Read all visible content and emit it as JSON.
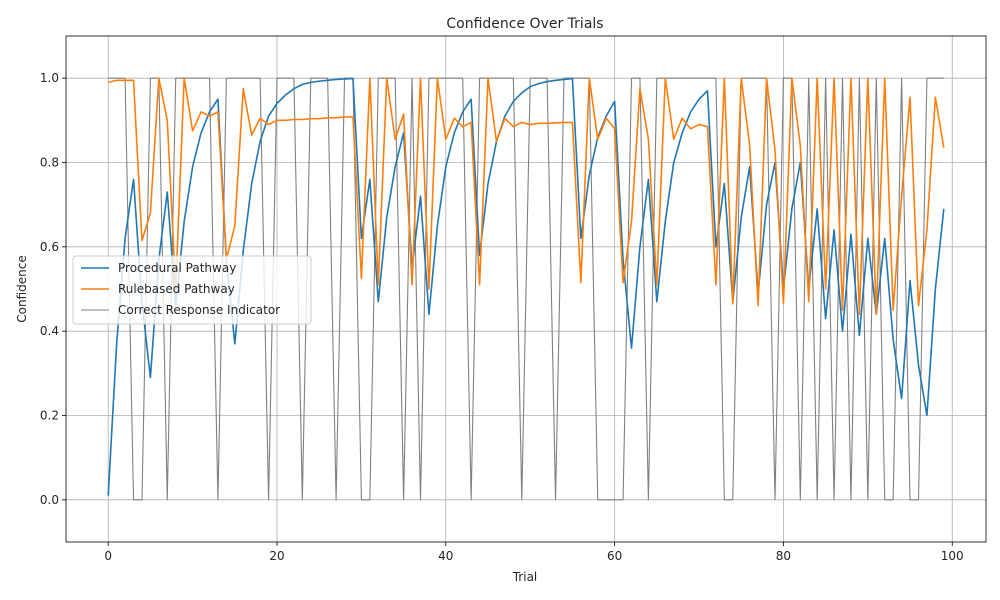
{
  "chart_data": {
    "type": "line",
    "title": "Confidence Over Trials",
    "xlabel": "Trial",
    "ylabel": "Confidence",
    "xlim": [
      -5,
      104
    ],
    "ylim": [
      -0.1,
      1.1
    ],
    "xticks": [
      0,
      20,
      40,
      60,
      80,
      100
    ],
    "yticks": [
      0.0,
      0.2,
      0.4,
      0.6,
      0.8,
      1.0
    ],
    "grid": true,
    "legend_position": "center-left",
    "x": [
      0,
      1,
      2,
      3,
      4,
      5,
      6,
      7,
      8,
      9,
      10,
      11,
      12,
      13,
      14,
      15,
      16,
      17,
      18,
      19,
      20,
      21,
      22,
      23,
      24,
      25,
      26,
      27,
      28,
      29,
      30,
      31,
      32,
      33,
      34,
      35,
      36,
      37,
      38,
      39,
      40,
      41,
      42,
      43,
      44,
      45,
      46,
      47,
      48,
      49,
      50,
      51,
      52,
      53,
      54,
      55,
      56,
      57,
      58,
      59,
      60,
      61,
      62,
      63,
      64,
      65,
      66,
      67,
      68,
      69,
      70,
      71,
      72,
      73,
      74,
      75,
      76,
      77,
      78,
      79,
      80,
      81,
      82,
      83,
      84,
      85,
      86,
      87,
      88,
      89,
      90,
      91,
      92,
      93,
      94,
      95,
      96,
      97,
      98,
      99
    ],
    "series": [
      {
        "name": "Procedural Pathway",
        "color": "#1f77b4",
        "values": [
          0.01,
          0.37,
          0.62,
          0.76,
          0.47,
          0.29,
          0.57,
          0.73,
          0.46,
          0.66,
          0.79,
          0.87,
          0.92,
          0.95,
          0.57,
          0.37,
          0.59,
          0.75,
          0.85,
          0.91,
          0.94,
          0.96,
          0.975,
          0.985,
          0.99,
          0.993,
          0.995,
          0.997,
          0.998,
          0.999,
          0.62,
          0.76,
          0.47,
          0.67,
          0.79,
          0.87,
          0.55,
          0.72,
          0.44,
          0.65,
          0.79,
          0.87,
          0.92,
          0.95,
          0.58,
          0.75,
          0.85,
          0.91,
          0.945,
          0.965,
          0.98,
          0.987,
          0.992,
          0.995,
          0.997,
          0.999,
          0.62,
          0.77,
          0.86,
          0.91,
          0.945,
          0.57,
          0.36,
          0.6,
          0.76,
          0.47,
          0.66,
          0.8,
          0.87,
          0.92,
          0.95,
          0.97,
          0.6,
          0.75,
          0.47,
          0.67,
          0.79,
          0.49,
          0.7,
          0.8,
          0.5,
          0.69,
          0.8,
          0.5,
          0.69,
          0.43,
          0.64,
          0.4,
          0.63,
          0.39,
          0.62,
          0.44,
          0.62,
          0.38,
          0.24,
          0.52,
          0.32,
          0.2,
          0.5,
          0.69
        ]
      },
      {
        "name": "Rulebased Pathway",
        "color": "#ff7f0e",
        "values": [
          0.99,
          0.995,
          0.995,
          0.995,
          0.615,
          0.68,
          1.0,
          0.9,
          0.5,
          1.0,
          0.875,
          0.92,
          0.91,
          0.92,
          0.57,
          0.65,
          0.975,
          0.865,
          0.905,
          0.89,
          0.9,
          0.9,
          0.902,
          0.902,
          0.904,
          0.904,
          0.906,
          0.906,
          0.908,
          0.908,
          0.525,
          1.0,
          0.51,
          1.0,
          0.855,
          0.915,
          0.51,
          1.0,
          0.5,
          1.0,
          0.855,
          0.905,
          0.885,
          0.895,
          0.51,
          1.0,
          0.85,
          0.905,
          0.885,
          0.895,
          0.89,
          0.893,
          0.893,
          0.894,
          0.895,
          0.895,
          0.515,
          1.0,
          0.855,
          0.905,
          0.88,
          0.515,
          0.66,
          0.975,
          0.855,
          0.51,
          1.0,
          0.855,
          0.905,
          0.88,
          0.89,
          0.885,
          0.51,
          1.0,
          0.465,
          1.0,
          0.84,
          0.46,
          1.0,
          0.83,
          0.465,
          1.0,
          0.84,
          0.47,
          1.0,
          0.5,
          1.0,
          0.45,
          1.0,
          0.44,
          1.0,
          0.44,
          1.0,
          0.45,
          0.72,
          0.955,
          0.46,
          0.64,
          0.955,
          0.835
        ]
      },
      {
        "name": "Correct Response Indicator",
        "color": "#808080",
        "values": [
          1,
          1,
          1,
          0,
          0,
          1,
          1,
          0,
          1,
          1,
          1,
          1,
          1,
          0,
          1,
          1,
          1,
          1,
          1,
          0,
          1,
          1,
          1,
          0,
          1,
          1,
          1,
          0,
          1,
          1,
          0,
          0,
          1,
          1,
          1,
          0,
          1,
          0,
          1,
          1,
          1,
          1,
          1,
          0,
          1,
          1,
          1,
          1,
          1,
          0,
          1,
          1,
          1,
          0,
          1,
          1,
          1,
          1,
          0,
          0,
          0,
          0,
          1,
          1,
          0,
          1,
          1,
          1,
          1,
          1,
          1,
          1,
          1,
          0,
          0,
          1,
          1,
          1,
          1,
          0,
          1,
          1,
          0,
          1,
          0,
          1,
          0,
          1,
          0,
          1,
          0,
          1,
          0,
          0,
          1,
          0,
          0,
          1,
          1,
          1
        ]
      }
    ]
  }
}
